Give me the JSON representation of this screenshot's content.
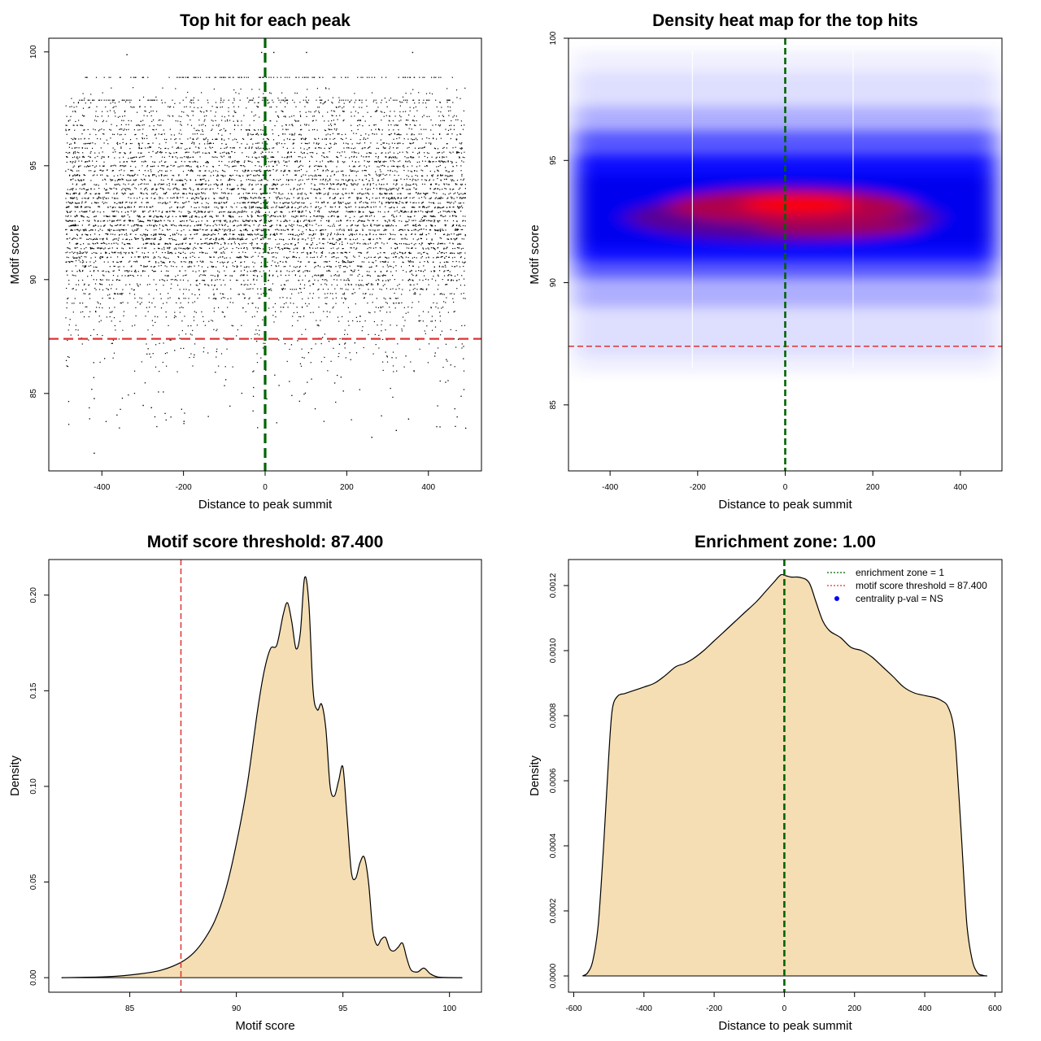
{
  "chart_data": [
    {
      "type": "scatter",
      "title": "Top hit for each peak",
      "xlabel": "Distance to peak summit",
      "ylabel": "Motif score",
      "xlim": [
        -530,
        530
      ],
      "ylim": [
        81.6,
        100.6
      ],
      "xticks": [
        -400,
        -200,
        0,
        200,
        400
      ],
      "yticks": [
        85,
        90,
        95,
        100
      ],
      "points_description": "Top-hit motif score for each peak vs distance to summit; points spread over [-490, 490], scores mostly 88-98 with a dense band 90.5-95.5",
      "vline": {
        "x": 0,
        "color": "#006400"
      },
      "hline": {
        "y": 87.4,
        "color": "#dd3333"
      }
    },
    {
      "type": "heatmap",
      "title": "Density heat map for the top hits",
      "xlabel": "Distance to peak summit",
      "ylabel": "Motif score",
      "xlim": [
        -495,
        495
      ],
      "ylim": [
        82.3,
        100
      ],
      "xticks": [
        -400,
        -200,
        0,
        200,
        400
      ],
      "yticks": [
        85,
        90,
        95,
        100
      ],
      "density_peak": {
        "x": 30,
        "y": 93.2
      },
      "vline": {
        "x": 0,
        "color": "#006400"
      },
      "hline": {
        "y": 87.4,
        "color": "#dd3333"
      }
    },
    {
      "type": "area",
      "title": "Motif score threshold: 87.400",
      "xlabel": "Motif score",
      "ylabel": "Density",
      "xlim": [
        81.2,
        101.5
      ],
      "ylim": [
        -0.0076,
        0.2186
      ],
      "xticks": [
        85,
        90,
        95,
        100
      ],
      "yticks": [
        0.0,
        0.05,
        0.1,
        0.15,
        0.2
      ],
      "ytick_labels": [
        "0.00",
        "0.05",
        "0.10",
        "0.15",
        "0.20"
      ],
      "x": [
        81.8,
        84,
        85.5,
        86.5,
        87.4,
        88,
        88.5,
        89,
        89.5,
        90,
        90.5,
        91,
        91.3,
        91.6,
        91.9,
        92.2,
        92.4,
        92.6,
        92.8,
        93.0,
        93.2,
        93.4,
        93.6,
        93.8,
        94.0,
        94.2,
        94.4,
        94.6,
        94.8,
        95.0,
        95.2,
        95.4,
        95.6,
        95.8,
        96.0,
        96.2,
        96.4,
        96.6,
        96.8,
        97.0,
        97.2,
        97.4,
        97.6,
        97.8,
        98.0,
        98.2,
        98.5,
        98.8,
        99.1,
        99.4,
        99.8,
        100.6
      ],
      "y": [
        0,
        0.0005,
        0.002,
        0.004,
        0.008,
        0.013,
        0.02,
        0.03,
        0.046,
        0.07,
        0.1,
        0.14,
        0.16,
        0.172,
        0.174,
        0.19,
        0.196,
        0.186,
        0.172,
        0.18,
        0.209,
        0.196,
        0.15,
        0.14,
        0.143,
        0.13,
        0.1,
        0.095,
        0.103,
        0.11,
        0.083,
        0.055,
        0.052,
        0.06,
        0.063,
        0.05,
        0.025,
        0.017,
        0.02,
        0.021,
        0.015,
        0.014,
        0.016,
        0.018,
        0.01,
        0.004,
        0.003,
        0.005,
        0.002,
        0.0005,
        0.0001,
        0
      ],
      "vline": {
        "x": 87.4,
        "color": "#dd3333"
      },
      "fill": "#f5deb3"
    },
    {
      "type": "area",
      "title": "Enrichment zone: 1.00",
      "xlabel": "Distance to peak summit",
      "ylabel": "Density",
      "xlim": [
        -615,
        620
      ],
      "ylim": [
        -5e-05,
        0.00128
      ],
      "xticks": [
        -600,
        -400,
        -200,
        0,
        200,
        400,
        600
      ],
      "yticks": [
        0.0,
        0.0002,
        0.0004,
        0.0006,
        0.0008,
        0.001,
        0.0012
      ],
      "ytick_labels": [
        "0.0000",
        "0.0002",
        "0.0004",
        "0.0006",
        "0.0008",
        "0.0010",
        "0.0012"
      ],
      "x": [
        -575,
        -560,
        -545,
        -530,
        -515,
        -500,
        -490,
        -475,
        -455,
        -430,
        -400,
        -370,
        -340,
        -310,
        -285,
        -260,
        -230,
        -200,
        -170,
        -140,
        -110,
        -80,
        -55,
        -30,
        -10,
        5,
        20,
        45,
        70,
        90,
        110,
        130,
        160,
        190,
        220,
        250,
        280,
        310,
        340,
        370,
        400,
        430,
        450,
        465,
        480,
        490,
        505,
        520,
        535,
        550,
        565,
        578
      ],
      "y": [
        0,
        1e-05,
        5e-05,
        0.00016,
        0.0004,
        0.00068,
        0.00082,
        0.00086,
        0.000868,
        0.000877,
        0.000888,
        0.0009,
        0.000923,
        0.00095,
        0.00096,
        0.000975,
        0.001,
        0.00103,
        0.00106,
        0.00109,
        0.00112,
        0.00115,
        0.00118,
        0.00121,
        0.001233,
        0.00123,
        0.001226,
        0.001225,
        0.00121,
        0.00115,
        0.00109,
        0.00106,
        0.00104,
        0.00101,
        0.001,
        0.00098,
        0.00095,
        0.00092,
        0.000888,
        0.00087,
        0.000862,
        0.000855,
        0.000845,
        0.00083,
        0.00078,
        0.00068,
        0.00042,
        0.00016,
        5e-05,
        1e-05,
        2e-06,
        0
      ],
      "vline": {
        "x": 0,
        "color": "#006400"
      },
      "fill": "#f5deb3",
      "legend": {
        "position": "top-right",
        "entries": [
          {
            "label": "enrichment zone = 1",
            "color": "#006400",
            "style": "dotted-line"
          },
          {
            "label": "motif score threshold = 87.400",
            "color": "#dd3333",
            "style": "dotted-line"
          },
          {
            "label": "centrality p-val = NS",
            "color": "#0000ff",
            "style": "dot"
          }
        ]
      }
    }
  ]
}
